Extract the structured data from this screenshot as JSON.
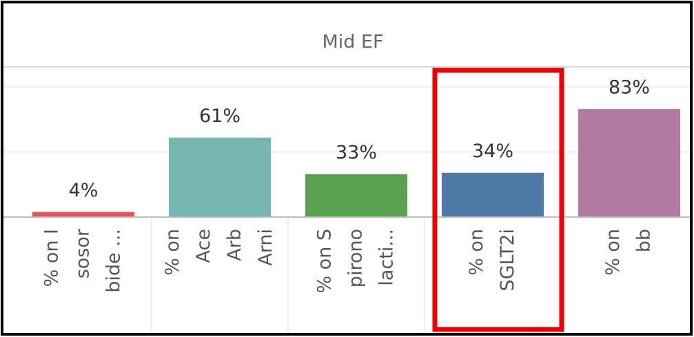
{
  "chart_data": {
    "type": "bar",
    "title": "Mid EF",
    "categories": [
      [
        "% on I",
        "sosor",
        "bide ..."
      ],
      [
        "% on",
        "Ace",
        "Arb",
        "Arni"
      ],
      [
        "% on S",
        "pirono",
        "lacti..."
      ],
      [
        "% on",
        "SGLT2i"
      ],
      [
        "% on",
        "bb"
      ]
    ],
    "values": [
      4,
      61,
      33,
      34,
      83
    ],
    "value_labels": [
      "4%",
      "61%",
      "33%",
      "34%",
      "83%"
    ],
    "colors": [
      "#e15759",
      "#76b7b2",
      "#59a14f",
      "#4e79a7",
      "#b07aa1"
    ],
    "ylim": [
      0,
      100
    ],
    "yticks": [
      0,
      50,
      100
    ],
    "grid": true
  }
}
